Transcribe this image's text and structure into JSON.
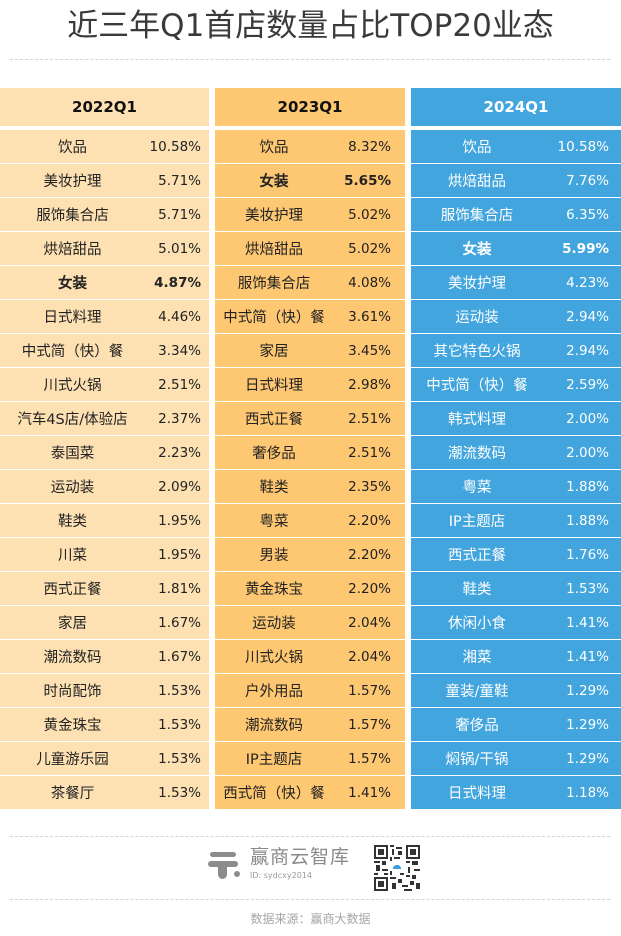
{
  "title": "近三年Q1首店数量占比TOP20业态",
  "colors": {
    "col2022": "#fde1b3",
    "col2023": "#fec772",
    "col2024": "#42a5de"
  },
  "columns": [
    {
      "header": "2022Q1",
      "rows": [
        {
          "name": "饮品",
          "value": "10.58%"
        },
        {
          "name": "美妆护理",
          "value": "5.71%"
        },
        {
          "name": "服饰集合店",
          "value": "5.71%"
        },
        {
          "name": "烘焙甜品",
          "value": "5.01%"
        },
        {
          "name": "女装",
          "value": "4.87%",
          "highlight": true
        },
        {
          "name": "日式料理",
          "value": "4.46%"
        },
        {
          "name": "中式简（快）餐",
          "value": "3.34%"
        },
        {
          "name": "川式火锅",
          "value": "2.51%"
        },
        {
          "name": "汽车4S店/体验店",
          "value": "2.37%"
        },
        {
          "name": "泰国菜",
          "value": "2.23%"
        },
        {
          "name": "运动装",
          "value": "2.09%"
        },
        {
          "name": "鞋类",
          "value": "1.95%"
        },
        {
          "name": "川菜",
          "value": "1.95%"
        },
        {
          "name": "西式正餐",
          "value": "1.81%"
        },
        {
          "name": "家居",
          "value": "1.67%"
        },
        {
          "name": "潮流数码",
          "value": "1.67%"
        },
        {
          "name": "时尚配饰",
          "value": "1.53%"
        },
        {
          "name": "黄金珠宝",
          "value": "1.53%"
        },
        {
          "name": "儿童游乐园",
          "value": "1.53%"
        },
        {
          "name": "茶餐厅",
          "value": "1.53%"
        }
      ]
    },
    {
      "header": "2023Q1",
      "rows": [
        {
          "name": "饮品",
          "value": "8.32%"
        },
        {
          "name": "女装",
          "value": "5.65%",
          "highlight": true
        },
        {
          "name": "美妆护理",
          "value": "5.02%"
        },
        {
          "name": "烘焙甜品",
          "value": "5.02%"
        },
        {
          "name": "服饰集合店",
          "value": "4.08%"
        },
        {
          "name": "中式简（快）餐",
          "value": "3.61%"
        },
        {
          "name": "家居",
          "value": "3.45%"
        },
        {
          "name": "日式料理",
          "value": "2.98%"
        },
        {
          "name": "西式正餐",
          "value": "2.51%"
        },
        {
          "name": "奢侈品",
          "value": "2.51%"
        },
        {
          "name": "鞋类",
          "value": "2.35%"
        },
        {
          "name": "粤菜",
          "value": "2.20%"
        },
        {
          "name": "男装",
          "value": "2.20%"
        },
        {
          "name": "黄金珠宝",
          "value": "2.20%"
        },
        {
          "name": "运动装",
          "value": "2.04%"
        },
        {
          "name": "川式火锅",
          "value": "2.04%"
        },
        {
          "name": "户外用品",
          "value": "1.57%"
        },
        {
          "name": "潮流数码",
          "value": "1.57%"
        },
        {
          "name": "IP主题店",
          "value": "1.57%"
        },
        {
          "name": "西式简（快）餐",
          "value": "1.41%"
        }
      ]
    },
    {
      "header": "2024Q1",
      "rows": [
        {
          "name": "饮品",
          "value": "10.58%"
        },
        {
          "name": "烘焙甜品",
          "value": "7.76%"
        },
        {
          "name": "服饰集合店",
          "value": "6.35%"
        },
        {
          "name": "女装",
          "value": "5.99%",
          "highlight": true
        },
        {
          "name": "美妆护理",
          "value": "4.23%"
        },
        {
          "name": "运动装",
          "value": "2.94%"
        },
        {
          "name": "其它特色火锅",
          "value": "2.94%"
        },
        {
          "name": "中式简（快）餐",
          "value": "2.59%"
        },
        {
          "name": "韩式料理",
          "value": "2.00%"
        },
        {
          "name": "潮流数码",
          "value": "2.00%"
        },
        {
          "name": "粤菜",
          "value": "1.88%"
        },
        {
          "name": "IP主题店",
          "value": "1.88%"
        },
        {
          "name": "西式正餐",
          "value": "1.76%"
        },
        {
          "name": "鞋类",
          "value": "1.53%"
        },
        {
          "name": "休闲小食",
          "value": "1.41%"
        },
        {
          "name": "湘菜",
          "value": "1.41%"
        },
        {
          "name": "童装/童鞋",
          "value": "1.29%"
        },
        {
          "name": "奢侈品",
          "value": "1.29%"
        },
        {
          "name": "焖锅/干锅",
          "value": "1.29%"
        },
        {
          "name": "日式料理",
          "value": "1.18%"
        }
      ]
    }
  ],
  "footer": {
    "logo_name": "赢商云智库",
    "logo_id": "ID: sydcxy2014",
    "logo_icon": "winshang-logo-icon",
    "qr_icon": "qr-code-icon",
    "source": "数据来源：赢商大数据"
  }
}
